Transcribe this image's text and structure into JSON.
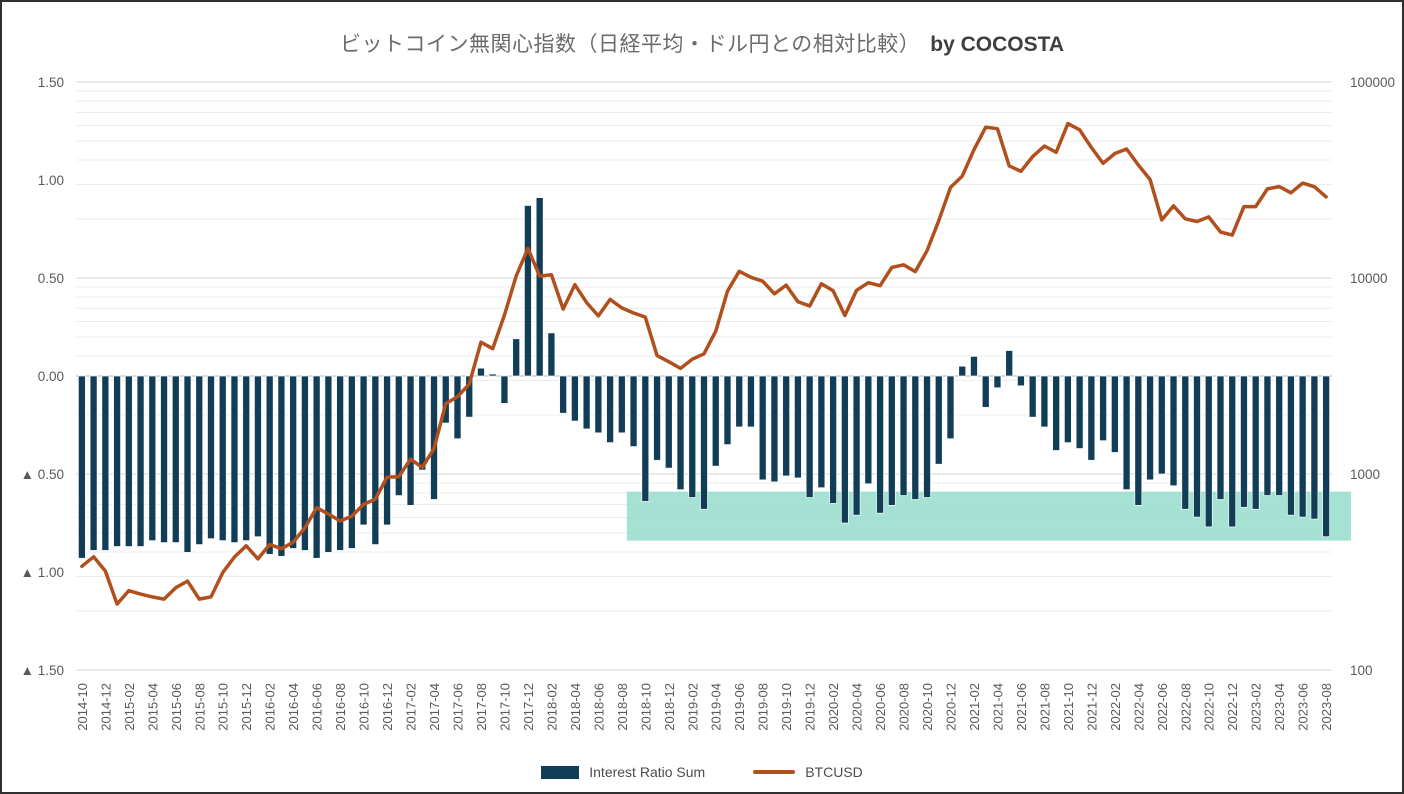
{
  "title": {
    "main": "ビットコイン無関心指数（日経平均・ドル円との相対比較）",
    "suffix": "by COCOSTA"
  },
  "legend": {
    "bar_label": "Interest Ratio Sum",
    "line_label": "BTCUSD"
  },
  "colors": {
    "bar": "#113E56",
    "line": "#B1501D",
    "band": "#97DDCB",
    "grid_minor": "#ececec",
    "grid_decade": "#d6d6d6",
    "zero_line": "#b3b3b3",
    "axis_text": "#595959"
  },
  "chart_data": {
    "type": "combo-bar-line",
    "x": [
      "2014-10",
      "2014-11",
      "2014-12",
      "2015-01",
      "2015-02",
      "2015-03",
      "2015-04",
      "2015-05",
      "2015-06",
      "2015-07",
      "2015-08",
      "2015-09",
      "2015-10",
      "2015-11",
      "2015-12",
      "2016-01",
      "2016-02",
      "2016-03",
      "2016-04",
      "2016-05",
      "2016-06",
      "2016-07",
      "2016-08",
      "2016-09",
      "2016-10",
      "2016-11",
      "2016-12",
      "2017-01",
      "2017-02",
      "2017-03",
      "2017-04",
      "2017-05",
      "2017-06",
      "2017-07",
      "2017-08",
      "2017-09",
      "2017-10",
      "2017-11",
      "2017-12",
      "2018-01",
      "2018-02",
      "2018-03",
      "2018-04",
      "2018-05",
      "2018-06",
      "2018-07",
      "2018-08",
      "2018-09",
      "2018-10",
      "2018-11",
      "2018-12",
      "2019-01",
      "2019-02",
      "2019-03",
      "2019-04",
      "2019-05",
      "2019-06",
      "2019-07",
      "2019-08",
      "2019-09",
      "2019-10",
      "2019-11",
      "2019-12",
      "2020-01",
      "2020-02",
      "2020-03",
      "2020-04",
      "2020-05",
      "2020-06",
      "2020-07",
      "2020-08",
      "2020-09",
      "2020-10",
      "2020-11",
      "2020-12",
      "2021-01",
      "2021-02",
      "2021-03",
      "2021-04",
      "2021-05",
      "2021-06",
      "2021-07",
      "2021-08",
      "2021-09",
      "2021-10",
      "2021-11",
      "2021-12",
      "2022-01",
      "2022-02",
      "2022-03",
      "2022-04",
      "2022-05",
      "2022-06",
      "2022-07",
      "2022-08",
      "2022-09",
      "2022-10",
      "2022-11",
      "2022-12",
      "2023-01",
      "2023-02",
      "2023-03",
      "2023-04",
      "2023-05",
      "2023-06",
      "2023-07",
      "2023-08"
    ],
    "x_label_every": 2,
    "series": [
      {
        "name": "Interest Ratio Sum",
        "type": "bar",
        "axis": "left",
        "values": [
          -0.93,
          -0.89,
          -0.89,
          -0.87,
          -0.87,
          -0.87,
          -0.84,
          -0.85,
          -0.85,
          -0.9,
          -0.86,
          -0.83,
          -0.84,
          -0.85,
          -0.84,
          -0.82,
          -0.91,
          -0.92,
          -0.88,
          -0.89,
          -0.93,
          -0.9,
          -0.89,
          -0.88,
          -0.76,
          -0.86,
          -0.76,
          -0.61,
          -0.66,
          -0.48,
          -0.63,
          -0.24,
          -0.32,
          -0.21,
          0.04,
          0.01,
          -0.14,
          0.19,
          0.87,
          0.91,
          0.22,
          -0.19,
          -0.23,
          -0.27,
          -0.29,
          -0.34,
          -0.29,
          -0.36,
          -0.64,
          -0.43,
          -0.47,
          -0.58,
          -0.62,
          -0.68,
          -0.46,
          -0.35,
          -0.26,
          -0.26,
          -0.53,
          -0.54,
          -0.51,
          -0.52,
          -0.62,
          -0.57,
          -0.65,
          -0.75,
          -0.71,
          -0.55,
          -0.7,
          -0.66,
          -0.61,
          -0.63,
          -0.62,
          -0.45,
          -0.32,
          0.05,
          0.1,
          -0.16,
          -0.06,
          0.13,
          -0.05,
          -0.21,
          -0.26,
          -0.38,
          -0.34,
          -0.37,
          -0.43,
          -0.33,
          -0.39,
          -0.58,
          -0.66,
          -0.53,
          -0.5,
          -0.56,
          -0.68,
          -0.72,
          -0.77,
          -0.63,
          -0.77,
          -0.67,
          -0.68,
          -0.61,
          -0.61,
          -0.71,
          -0.72,
          -0.73,
          -0.82
        ]
      },
      {
        "name": "BTCUSD",
        "type": "line",
        "axis": "right",
        "values": [
          338,
          378,
          320,
          217,
          254,
          244,
          236,
          230,
          263,
          284,
          230,
          236,
          314,
          377,
          430,
          369,
          437,
          416,
          448,
          531,
          673,
          625,
          576,
          610,
          700,
          745,
          963,
          970,
          1190,
          1080,
          1347,
          2286,
          2480,
          2875,
          4703,
          4360,
          6468,
          10233,
          14156,
          10221,
          10397,
          6938,
          9240,
          7494,
          6404,
          7780,
          7037,
          6625,
          6317,
          4017,
          3742,
          3457,
          3854,
          4105,
          5350,
          8574,
          10817,
          10085,
          9630,
          8308,
          9199,
          7569,
          7193,
          9350,
          8599,
          6438,
          8658,
          9461,
          9137,
          11323,
          11680,
          10784,
          13781,
          19625,
          28993,
          33114,
          45137,
          58786,
          57750,
          37332,
          35040,
          41626,
          47166,
          43790,
          61318,
          57005,
          46306,
          38483,
          43193,
          45538,
          37714,
          31792,
          19784,
          23336,
          20049,
          19431,
          20495,
          17168,
          16547,
          23139,
          23147,
          28478,
          29268,
          27219,
          30477,
          29230,
          25932
        ]
      }
    ],
    "left_axis": {
      "min": -1.5,
      "max": 1.5,
      "ticks": [
        {
          "value": 1.5,
          "label": "1.50"
        },
        {
          "value": 1.0,
          "label": "1.00"
        },
        {
          "value": 0.5,
          "label": "0.50"
        },
        {
          "value": 0.0,
          "label": "0.00"
        },
        {
          "value": -0.5,
          "label": "▲ 0.50"
        },
        {
          "value": -1.0,
          "label": "▲ 1.00"
        },
        {
          "value": -1.5,
          "label": "▲ 1.50"
        }
      ]
    },
    "right_axis": {
      "scale": "log",
      "min": 100,
      "max": 100000,
      "ticks": [
        {
          "value": 100000,
          "label": "100000"
        },
        {
          "value": 10000,
          "label": "10000"
        },
        {
          "value": 1000,
          "label": "1000"
        },
        {
          "value": 100,
          "label": "100"
        }
      ]
    },
    "highlight_band": {
      "start_month": "2018-08",
      "extends_past_plot": true,
      "value_top": -0.59,
      "value_bottom": -0.84
    }
  }
}
